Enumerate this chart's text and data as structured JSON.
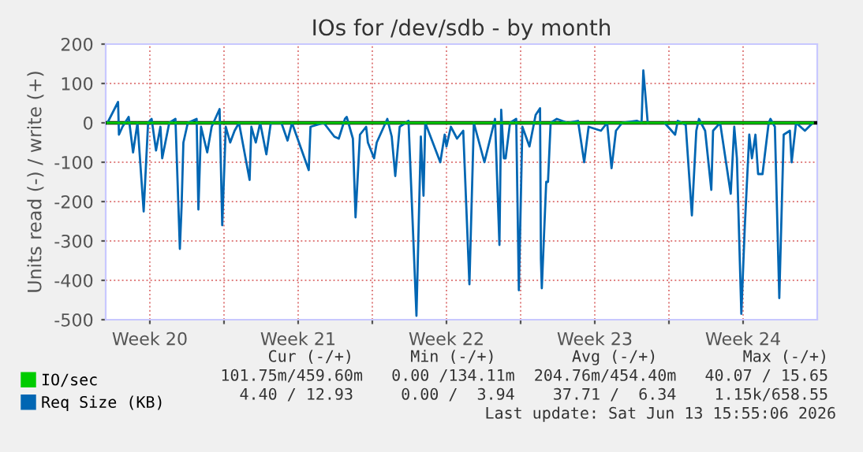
{
  "chart_data": {
    "type": "line",
    "title": "IOs for /dev/sdb - by month",
    "ylabel": "Units read (-) / write (+)",
    "xlim": [
      "2026-05-12T10:00",
      "2026-06-15T00:00"
    ],
    "ylim": [
      -500,
      200
    ],
    "xticks": [
      {
        "value": "2026-05-14T12:00",
        "label": "Week 20"
      },
      {
        "value": "2026-05-18",
        "label": null
      },
      {
        "value": "2026-05-21T12:00",
        "label": "Week 21"
      },
      {
        "value": "2026-05-25",
        "label": null
      },
      {
        "value": "2026-05-28T12:00",
        "label": "Week 22"
      },
      {
        "value": "2026-06-01",
        "label": null
      },
      {
        "value": "2026-06-04T12:00",
        "label": "Week 23"
      },
      {
        "value": "2026-06-08",
        "label": null
      },
      {
        "value": "2026-06-11T12:00",
        "label": "Week 24"
      }
    ],
    "yticks": [
      -500,
      -400,
      -300,
      -200,
      -100,
      0,
      100,
      200
    ],
    "grid": true,
    "legend": "bottom left",
    "marker": "none",
    "line_style": "solid",
    "ref_lines": [
      {
        "axis": "y",
        "value": 0,
        "color": "#000000"
      }
    ],
    "series": [
      {
        "name": "IO/sec",
        "color": "#00cc00",
        "x": [
          "2026-05-12T12:00",
          "2026-06-14T19:00"
        ],
        "values": [
          0,
          0
        ]
      },
      {
        "name": "Req Size (KB)",
        "color": "#0066b3",
        "x": [
          "2026-05-12T12:00",
          "2026-05-13T00:00",
          "2026-05-13T01:00",
          "2026-05-13T05:00",
          "2026-05-13T12:00",
          "2026-05-13T17:00",
          "2026-05-13T22:00",
          "2026-05-14T05:00",
          "2026-05-14T10:00",
          "2026-05-14T14:00",
          "2026-05-14T19:00",
          "2026-05-15T00:00",
          "2026-05-15T02:00",
          "2026-05-15T10:00",
          "2026-05-15T17:00",
          "2026-05-15T22:00",
          "2026-05-16T00:00",
          "2026-05-16T02:00",
          "2026-05-16T07:00",
          "2026-05-16T17:00",
          "2026-05-16T19:00",
          "2026-05-16T22:00",
          "2026-05-17T05:00",
          "2026-05-17T10:00",
          "2026-05-17T19:00",
          "2026-05-17T22:00",
          "2026-05-18T02:00",
          "2026-05-18T07:00",
          "2026-05-18T12:00",
          "2026-05-18T17:00",
          "2026-05-19T05:00",
          "2026-05-19T07:00",
          "2026-05-19T12:00",
          "2026-05-19T17:00",
          "2026-05-20T00:00",
          "2026-05-20T05:00",
          "2026-05-20T17:00",
          "2026-05-21T00:00",
          "2026-05-21T05:00",
          "2026-05-22T00:00",
          "2026-05-22T02:00",
          "2026-05-22T17:00",
          "2026-05-23T05:00",
          "2026-05-23T10:00",
          "2026-05-23T17:00",
          "2026-05-23T19:00",
          "2026-05-24T02:00",
          "2026-05-24T05:00",
          "2026-05-24T10:00",
          "2026-05-24T17:00",
          "2026-05-24T19:00",
          "2026-05-25T02:00",
          "2026-05-25T05:00",
          "2026-05-25T12:00",
          "2026-05-25T17:00",
          "2026-05-25T22:00",
          "2026-05-26T02:00",
          "2026-05-26T07:00",
          "2026-05-26T17:00",
          "2026-05-27T02:00",
          "2026-05-27T07:00",
          "2026-05-27T10:00",
          "2026-05-27T12:00",
          "2026-05-28T05:00",
          "2026-05-28T10:00",
          "2026-05-28T12:00",
          "2026-05-28T17:00",
          "2026-05-29T00:00",
          "2026-05-29T07:00",
          "2026-05-29T14:00",
          "2026-05-29T19:00",
          "2026-05-30T07:00",
          "2026-05-30T19:00",
          "2026-05-31T00:00",
          "2026-05-31T02:00",
          "2026-05-31T05:00",
          "2026-05-31T07:00",
          "2026-05-31T12:00",
          "2026-05-31T19:00",
          "2026-05-31T22:00",
          "2026-06-01T02:00",
          "2026-06-01T10:00",
          "2026-06-01T17:00",
          "2026-06-01T22:00",
          "2026-06-01T23:00",
          "2026-06-02T00:00",
          "2026-06-02T05:00",
          "2026-06-02T07:00",
          "2026-06-02T10:00",
          "2026-06-02T17:00",
          "2026-06-03T05:00",
          "2026-06-03T17:00",
          "2026-06-04T00:00",
          "2026-06-04T05:00",
          "2026-06-04T19:00",
          "2026-06-05T02:00",
          "2026-06-05T07:00",
          "2026-06-05T12:00",
          "2026-06-05T19:00",
          "2026-06-06T12:00",
          "2026-06-06T17:00",
          "2026-06-06T19:00",
          "2026-06-07T00:00",
          "2026-06-07T12:00",
          "2026-06-07T19:00",
          "2026-06-08T07:00",
          "2026-06-08T10:00",
          "2026-06-08T19:00",
          "2026-06-09T02:00",
          "2026-06-09T07:00",
          "2026-06-09T10:00",
          "2026-06-09T17:00",
          "2026-06-10T00:00",
          "2026-06-10T02:00",
          "2026-06-10T10:00",
          "2026-06-10T22:00",
          "2026-06-11T02:00",
          "2026-06-11T05:00",
          "2026-06-11T10:00",
          "2026-06-11T14:00",
          "2026-06-11T19:00",
          "2026-06-11T22:00",
          "2026-06-12T02:00",
          "2026-06-12T05:00",
          "2026-06-12T10:00",
          "2026-06-12T17:00",
          "2026-06-12T19:00",
          "2026-06-13T00:00",
          "2026-06-13T05:00",
          "2026-06-13T10:00",
          "2026-06-13T17:00",
          "2026-06-13T19:00",
          "2026-06-14T00:00",
          "2026-06-14T10:00",
          "2026-06-14T19:00"
        ],
        "values": [
          0,
          53,
          -30,
          -10,
          15,
          -75,
          0,
          -225,
          0,
          10,
          -70,
          -10,
          -90,
          0,
          10,
          -320,
          -210,
          -50,
          0,
          10,
          -220,
          -10,
          -75,
          -10,
          35,
          -260,
          -10,
          -50,
          -20,
          0,
          -145,
          -10,
          -50,
          0,
          -80,
          0,
          0,
          -45,
          0,
          -120,
          -10,
          0,
          -35,
          -40,
          10,
          15,
          -40,
          -240,
          -30,
          -10,
          -50,
          -90,
          -50,
          -15,
          10,
          -35,
          -135,
          -10,
          5,
          -490,
          -35,
          -185,
          0,
          -100,
          -30,
          -60,
          -10,
          -40,
          -20,
          -410,
          0,
          -100,
          10,
          -310,
          33,
          -90,
          -90,
          0,
          10,
          -425,
          -10,
          -60,
          20,
          37,
          -345,
          -420,
          -150,
          -150,
          0,
          10,
          0,
          5,
          -100,
          -10,
          -20,
          0,
          -115,
          -20,
          0,
          5,
          0,
          133,
          0,
          null,
          0,
          -30,
          5,
          -5,
          -235,
          -20,
          10,
          -20,
          -170,
          -20,
          0,
          -180,
          -10,
          -90,
          -485,
          -260,
          -30,
          -90,
          -30,
          -130,
          -130,
          0,
          10,
          -10,
          -445,
          -30,
          -20,
          -100,
          0,
          -20,
          0
        ]
      }
    ],
    "annotations": [
      "Cur (-/+)      Min (-/+)        Avg (-/+)         Max (-/+)",
      "101.75m/459.60m   0.00 /134.11m  204.76m/454.40m   40.07 / 15.65",
      "4.40 / 12.93     0.00 /  3.94    37.71 /  6.34    1.15k/658.55",
      "Last update: Sat Jun 13 15:55:06 2026"
    ]
  }
}
